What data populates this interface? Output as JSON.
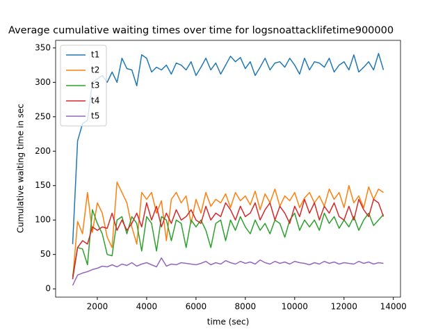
{
  "chart_data": {
    "type": "line",
    "title": "Average cumulative waiting times over time for logsnoattacklifetime900000",
    "xlabel": "time (sec)",
    "ylabel": "Cumulative waiting time in sec",
    "x": [
      1000,
      1200,
      1400,
      1600,
      1800,
      2000,
      2200,
      2400,
      2600,
      2800,
      3000,
      3200,
      3400,
      3600,
      3800,
      4000,
      4200,
      4400,
      4600,
      4800,
      5000,
      5200,
      5400,
      5600,
      5800,
      6000,
      6200,
      6400,
      6600,
      6800,
      7000,
      7200,
      7400,
      7600,
      7800,
      8000,
      8200,
      8400,
      8600,
      8800,
      9000,
      9200,
      9400,
      9600,
      9800,
      10000,
      10200,
      10400,
      10600,
      10800,
      11000,
      11200,
      11400,
      11600,
      11800,
      12000,
      12200,
      12400,
      12600,
      12800,
      13000,
      13200,
      13400,
      13600
    ],
    "series": [
      {
        "name": "t1",
        "color": "#1f77b4",
        "values": [
          65,
          215,
          240,
          245,
          300,
          305,
          310,
          300,
          315,
          300,
          335,
          320,
          318,
          295,
          340,
          335,
          315,
          322,
          318,
          325,
          312,
          328,
          325,
          318,
          330,
          310,
          322,
          335,
          318,
          328,
          312,
          325,
          338,
          330,
          336,
          320,
          330,
          310,
          322,
          335,
          318,
          328,
          330,
          322,
          335,
          325,
          312,
          335,
          318,
          330,
          328,
          322,
          335,
          315,
          325,
          330,
          318,
          340,
          315,
          322,
          330,
          318,
          342,
          318
        ]
      },
      {
        "name": "t2",
        "color": "#ff7f0e",
        "values": [
          14,
          98,
          80,
          140,
          82,
          125,
          110,
          75,
          60,
          155,
          140,
          125,
          90,
          65,
          140,
          130,
          140,
          110,
          128,
          70,
          130,
          140,
          125,
          135,
          95,
          130,
          110,
          140,
          120,
          130,
          125,
          138,
          118,
          140,
          128,
          135,
          122,
          142,
          115,
          138,
          125,
          145,
          120,
          135,
          128,
          140,
          118,
          132,
          140,
          125,
          135,
          120,
          145,
          130,
          140,
          118,
          150,
          125,
          135,
          118,
          148,
          130,
          145,
          140
        ]
      },
      {
        "name": "t3",
        "color": "#2ca02c",
        "values": [
          18,
          60,
          58,
          35,
          115,
          95,
          80,
          50,
          48,
          100,
          105,
          80,
          105,
          95,
          55,
          105,
          95,
          55,
          105,
          100,
          70,
          100,
          95,
          60,
          100,
          90,
          100,
          85,
          60,
          95,
          100,
          70,
          100,
          85,
          105,
          90,
          80,
          100,
          85,
          95,
          80,
          100,
          95,
          75,
          100,
          110,
          85,
          100,
          90,
          100,
          85,
          110,
          95,
          105,
          88,
          100,
          90,
          105,
          85,
          100,
          110,
          92,
          100,
          108
        ]
      },
      {
        "name": "t4",
        "color": "#d62728",
        "values": [
          14,
          60,
          70,
          65,
          90,
          85,
          90,
          88,
          110,
          85,
          100,
          85,
          95,
          110,
          90,
          125,
          100,
          120,
          90,
          110,
          95,
          115,
          100,
          105,
          115,
          100,
          95,
          120,
          100,
          110,
          105,
          125,
          115,
          100,
          120,
          105,
          110,
          125,
          100,
          115,
          125,
          100,
          120,
          110,
          95,
          120,
          105,
          130,
          110,
          125,
          100,
          120,
          110,
          125,
          105,
          100,
          120,
          100,
          130,
          115,
          105,
          130,
          125,
          105
        ]
      },
      {
        "name": "t5",
        "color": "#9467bd",
        "values": [
          5,
          20,
          23,
          25,
          28,
          30,
          33,
          32,
          35,
          32,
          36,
          34,
          38,
          33,
          36,
          38,
          35,
          32,
          45,
          33,
          36,
          35,
          38,
          37,
          36,
          35,
          37,
          40,
          35,
          38,
          36,
          41,
          38,
          36,
          40,
          37,
          39,
          36,
          42,
          38,
          36,
          40,
          37,
          39,
          36,
          40,
          38,
          37,
          35,
          38,
          36,
          40,
          37,
          39,
          36,
          38,
          37,
          36,
          40,
          37,
          39,
          36,
          38,
          37
        ]
      }
    ],
    "xlim": [
      310,
      14290
    ],
    "ylim": [
      -12,
      361
    ],
    "xticks": [
      2000,
      4000,
      6000,
      8000,
      10000,
      12000,
      14000
    ],
    "yticks": [
      0,
      50,
      100,
      150,
      200,
      250,
      300,
      350
    ],
    "legend": "upper left"
  }
}
